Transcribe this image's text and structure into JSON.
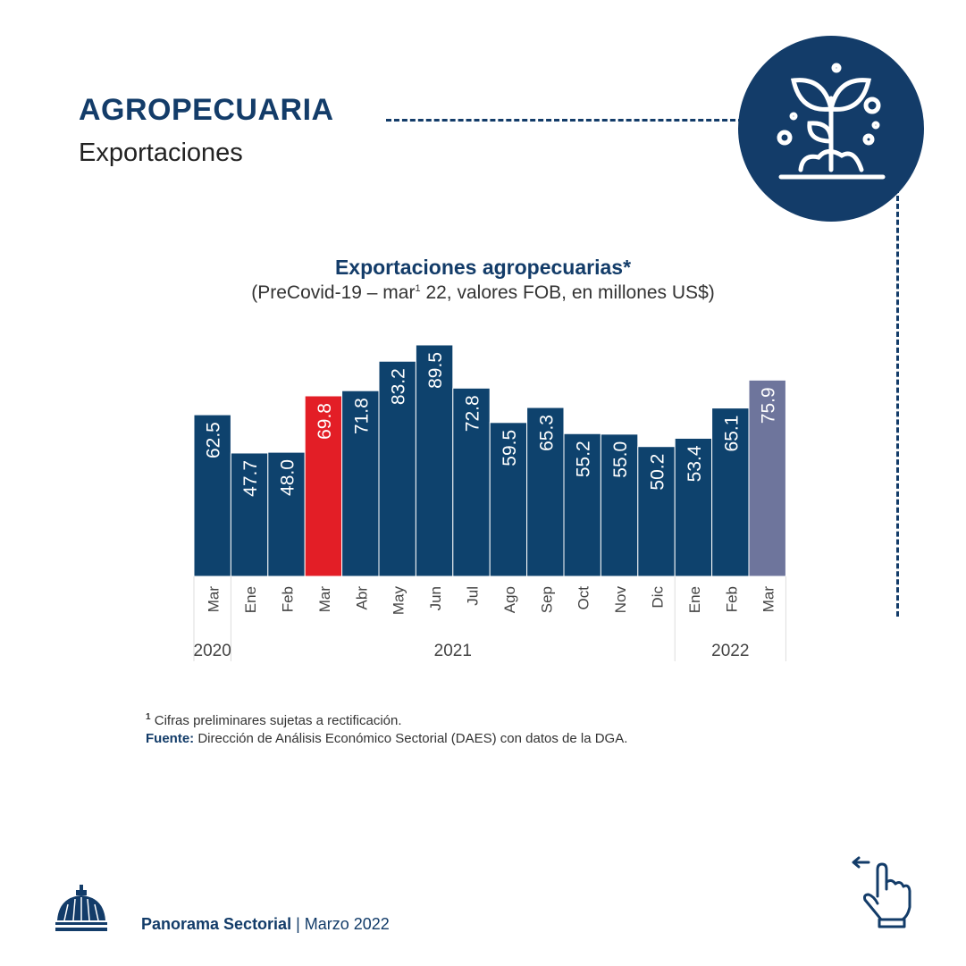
{
  "header": {
    "title": "AGROPECUARIA",
    "subtitle": "Exportaciones"
  },
  "icons": {
    "badge": "plant-sprout-icon",
    "logo": "dome-building-icon",
    "swipe": "swipe-left-hand-icon"
  },
  "colors": {
    "primary": "#133c69",
    "bar": "#0e426d",
    "highlight": "#e31e26",
    "latest": "#6e759c"
  },
  "chart_data": {
    "type": "bar",
    "title": "Exportaciones agropecuarias*",
    "subtitle_pre": "(PreCovid-19 – mar",
    "subtitle_sup": "1",
    "subtitle_post": " 22, valores FOB, en millones US$)",
    "categories": [
      "Mar",
      "Ene",
      "Feb",
      "Mar",
      "Abr",
      "May",
      "Jun",
      "Jul",
      "Ago",
      "Sep",
      "Oct",
      "Nov",
      "Dic",
      "Ene",
      "Feb",
      "Mar"
    ],
    "years": [
      {
        "label": "2020",
        "span": 1
      },
      {
        "label": "2021",
        "span": 12
      },
      {
        "label": "2022",
        "span": 3
      }
    ],
    "values": [
      62.5,
      47.7,
      48.0,
      69.8,
      71.8,
      83.2,
      89.5,
      72.8,
      59.5,
      65.3,
      55.2,
      55.0,
      50.2,
      53.4,
      65.1,
      75.9
    ],
    "value_labels": [
      "62.5",
      "47.7",
      "48.0",
      "69.8",
      "71.8",
      "83.2",
      "89.5",
      "72.8",
      "59.5",
      "65.3",
      "55.2",
      "55.0",
      "50.2",
      "53.4",
      "65.1",
      "75.9"
    ],
    "bar_colors": [
      "bar",
      "bar",
      "bar",
      "highlight",
      "bar",
      "bar",
      "bar",
      "bar",
      "bar",
      "bar",
      "bar",
      "bar",
      "bar",
      "bar",
      "bar",
      "latest"
    ],
    "ylim": [
      0,
      90
    ]
  },
  "notes": {
    "sup": "1",
    "note1": " Cifras preliminares sujetas a rectificación.",
    "source_label": "Fuente:",
    "source_text": " Dirección de Análisis Económico Sectorial (DAES) con datos de la DGA."
  },
  "footer": {
    "brand": "Panorama Sectorial",
    "sep": " | ",
    "date": "Marzo 2022"
  }
}
